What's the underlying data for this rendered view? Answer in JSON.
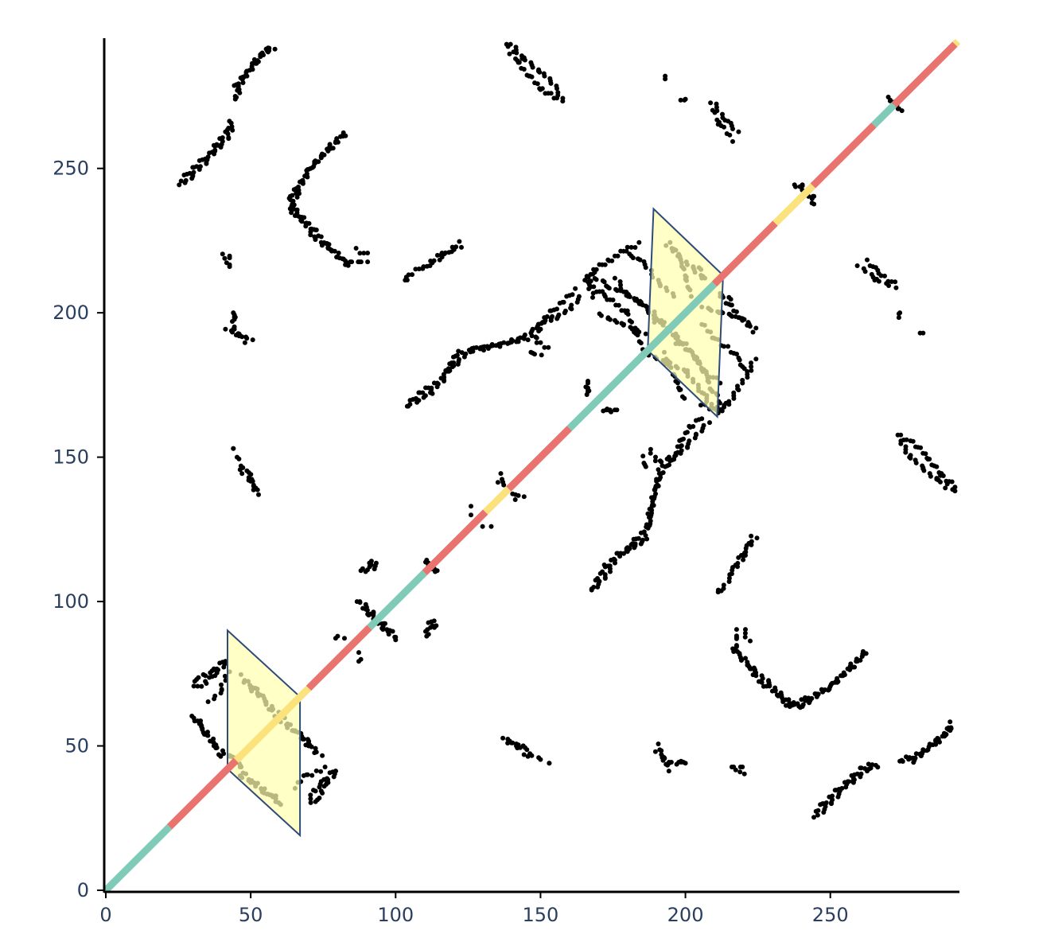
{
  "chart_data": {
    "type": "scatter",
    "title": "",
    "xlabel": "",
    "ylabel": "",
    "xlim": [
      0,
      294
    ],
    "ylim": [
      0,
      294
    ],
    "grid": false,
    "x_ticks": [
      {
        "value": 0,
        "label": "0"
      },
      {
        "value": 50,
        "label": "50"
      },
      {
        "value": 100,
        "label": "100"
      },
      {
        "value": 150,
        "label": "150"
      },
      {
        "value": 200,
        "label": "200"
      },
      {
        "value": 250,
        "label": "250"
      }
    ],
    "y_ticks": [
      {
        "value": 0,
        "label": "0"
      },
      {
        "value": 50,
        "label": "50"
      },
      {
        "value": 100,
        "label": "100"
      },
      {
        "value": 150,
        "label": "150"
      },
      {
        "value": 200,
        "label": "200"
      },
      {
        "value": 250,
        "label": "250"
      }
    ],
    "colors": {
      "points": "#000000",
      "helix": "#e8736f",
      "strand": "#7fcbb8",
      "turn": "#fbe27c",
      "domain_fill": "#ffffb0",
      "domain_stroke": "#2e4a7a",
      "axis": "#000000"
    },
    "diagonal_segments": [
      {
        "start": 0,
        "end": 22,
        "type": "strand"
      },
      {
        "start": 22,
        "end": 45,
        "type": "helix"
      },
      {
        "start": 45,
        "end": 70,
        "type": "turn"
      },
      {
        "start": 70,
        "end": 91,
        "type": "helix"
      },
      {
        "start": 91,
        "end": 110,
        "type": "strand"
      },
      {
        "start": 110,
        "end": 131,
        "type": "helix"
      },
      {
        "start": 131,
        "end": 139,
        "type": "turn"
      },
      {
        "start": 139,
        "end": 160,
        "type": "helix"
      },
      {
        "start": 160,
        "end": 210,
        "type": "strand"
      },
      {
        "start": 210,
        "end": 231,
        "type": "helix"
      },
      {
        "start": 231,
        "end": 244,
        "type": "turn"
      },
      {
        "start": 244,
        "end": 265,
        "type": "helix"
      },
      {
        "start": 265,
        "end": 272,
        "type": "strand"
      },
      {
        "start": 272,
        "end": 293,
        "type": "helix"
      },
      {
        "start": 293,
        "end": 294,
        "type": "turn"
      }
    ],
    "domains": [
      {
        "start": 42,
        "end": 67,
        "apex": [
          42,
          90
        ]
      },
      {
        "start": 187,
        "end": 213,
        "apex": [
          189,
          236
        ]
      }
    ],
    "contact_traces": [
      {
        "pts": [
          [
            26,
            245
          ],
          [
            30,
            248
          ],
          [
            34,
            252
          ],
          [
            38,
            256
          ],
          [
            42,
            260
          ],
          [
            44,
            265
          ]
        ],
        "step": 1.3
      },
      {
        "pts": [
          [
            45,
            275
          ],
          [
            48,
            282
          ],
          [
            52,
            287
          ],
          [
            56,
            291
          ],
          [
            58,
            292
          ]
        ],
        "step": 1.3
      },
      {
        "pts": [
          [
            64,
            234
          ],
          [
            66,
            242
          ],
          [
            70,
            250
          ],
          [
            74,
            254
          ],
          [
            78,
            258
          ],
          [
            82,
            262
          ]
        ],
        "step": 1.3
      },
      {
        "pts": [
          [
            64,
            238
          ],
          [
            68,
            232
          ],
          [
            72,
            226
          ],
          [
            76,
            222
          ],
          [
            80,
            220
          ],
          [
            84,
            218
          ],
          [
            90,
            218
          ]
        ],
        "step": 1.3
      },
      {
        "pts": [
          [
            41,
            217
          ],
          [
            41,
            220
          ]
        ],
        "step": 1.5
      },
      {
        "pts": [
          [
            42,
            195
          ],
          [
            46,
            193
          ],
          [
            50,
            191
          ]
        ],
        "step": 1.2
      },
      {
        "pts": [
          [
            44,
            197
          ],
          [
            44,
            200
          ]
        ],
        "step": 1.5
      },
      {
        "pts": [
          [
            44,
            153
          ]
        ],
        "step": 2
      },
      {
        "pts": [
          [
            46,
            146
          ],
          [
            50,
            142
          ],
          [
            52,
            137
          ]
        ],
        "step": 1.8
      },
      {
        "pts": [
          [
            103,
            212
          ],
          [
            104,
            211
          ]
        ],
        "step": 2
      },
      {
        "pts": [
          [
            110,
            216
          ],
          [
            116,
            220
          ],
          [
            122,
            223
          ]
        ],
        "step": 1.8
      },
      {
        "pts": [
          [
            140,
            293
          ],
          [
            144,
            288
          ],
          [
            150,
            283
          ],
          [
            156,
            277
          ],
          [
            158,
            274
          ]
        ],
        "step": 1.3
      },
      {
        "pts": [
          [
            193,
            282
          ]
        ],
        "step": 2
      },
      {
        "pts": [
          [
            198,
            274
          ],
          [
            200,
            274
          ]
        ],
        "step": 1.5
      },
      {
        "pts": [
          [
            210,
            272
          ],
          [
            214,
            266
          ],
          [
            218,
            262
          ]
        ],
        "step": 1.5
      },
      {
        "pts": [
          [
            260,
            217
          ],
          [
            266,
            212
          ],
          [
            272,
            209
          ]
        ],
        "step": 1.5
      },
      {
        "pts": [
          [
            274,
            200
          ]
        ],
        "step": 2
      },
      {
        "pts": [
          [
            281,
            193
          ]
        ],
        "step": 2
      },
      {
        "pts": [
          [
            104,
            168
          ],
          [
            108,
            170
          ],
          [
            112,
            172
          ],
          [
            116,
            176
          ],
          [
            120,
            182
          ],
          [
            126,
            188
          ],
          [
            134,
            189
          ],
          [
            142,
            190
          ],
          [
            148,
            194
          ],
          [
            154,
            198
          ],
          [
            160,
            202
          ],
          [
            164,
            206
          ]
        ],
        "step": 1.3
      },
      {
        "pts": [
          [
            146,
            186
          ],
          [
            150,
            185
          ]
        ],
        "step": 1.5
      },
      {
        "pts": [
          [
            188,
            186
          ],
          [
            194,
            183
          ],
          [
            200,
            180
          ],
          [
            206,
            172
          ],
          [
            210,
            166
          ],
          [
            214,
            168
          ],
          [
            218,
            174
          ],
          [
            222,
            180
          ],
          [
            224,
            184
          ]
        ],
        "step": 1.3
      },
      {
        "pts": [
          [
            206,
            202
          ],
          [
            212,
            200
          ],
          [
            218,
            198
          ],
          [
            224,
            194
          ]
        ],
        "step": 1.3
      },
      {
        "pts": [
          [
            212,
            206
          ],
          [
            216,
            204
          ]
        ],
        "step": 1.5
      },
      {
        "pts": [
          [
            166,
            176
          ],
          [
            166,
            172
          ]
        ],
        "step": 1.5
      },
      {
        "pts": [
          [
            172,
            166
          ],
          [
            176,
            166
          ]
        ],
        "step": 1.5
      },
      {
        "pts": [
          [
            166,
            212
          ],
          [
            168,
            206
          ]
        ],
        "step": 1.5
      },
      {
        "pts": [
          [
            168,
            104
          ],
          [
            172,
            108
          ],
          [
            176,
            114
          ],
          [
            180,
            118
          ],
          [
            186,
            122
          ],
          [
            188,
            132
          ],
          [
            190,
            140
          ],
          [
            192,
            148
          ],
          [
            196,
            150
          ],
          [
            200,
            154
          ],
          [
            204,
            158
          ],
          [
            208,
            162
          ]
        ],
        "step": 1.3
      },
      {
        "pts": [
          [
            188,
            152
          ],
          [
            190,
            148
          ]
        ],
        "step": 1.5
      },
      {
        "pts": [
          [
            216,
            84
          ],
          [
            220,
            80
          ],
          [
            224,
            76
          ],
          [
            228,
            72
          ],
          [
            234,
            66
          ],
          [
            240,
            64
          ],
          [
            246,
            68
          ],
          [
            252,
            72
          ],
          [
            256,
            76
          ],
          [
            262,
            82
          ]
        ],
        "step": 1.3
      },
      {
        "pts": [
          [
            220,
            90
          ],
          [
            222,
            86
          ]
        ],
        "step": 1.5
      },
      {
        "pts": [
          [
            212,
            104
          ],
          [
            216,
            110
          ],
          [
            220,
            116
          ],
          [
            224,
            122
          ]
        ],
        "step": 1.5
      },
      {
        "pts": [
          [
            246,
            26
          ],
          [
            250,
            30
          ],
          [
            254,
            34
          ],
          [
            258,
            38
          ],
          [
            262,
            42
          ],
          [
            266,
            43
          ]
        ],
        "step": 1.3
      },
      {
        "pts": [
          [
            274,
            44
          ],
          [
            278,
            45
          ],
          [
            282,
            48
          ],
          [
            286,
            52
          ],
          [
            290,
            54
          ],
          [
            292,
            56
          ]
        ],
        "step": 1.3
      },
      {
        "pts": [
          [
            274,
            156
          ],
          [
            278,
            150
          ],
          [
            282,
            146
          ],
          [
            286,
            142
          ],
          [
            290,
            140
          ],
          [
            293,
            139
          ]
        ],
        "step": 1.3
      },
      {
        "pts": [
          [
            138,
            52
          ],
          [
            142,
            50
          ],
          [
            146,
            48
          ],
          [
            150,
            46
          ]
        ],
        "step": 1.5
      },
      {
        "pts": [
          [
            153,
            44
          ]
        ],
        "step": 2
      },
      {
        "pts": [
          [
            190,
            48
          ],
          [
            194,
            44
          ],
          [
            200,
            44
          ]
        ],
        "step": 1.5
      },
      {
        "pts": [
          [
            216,
            42
          ],
          [
            220,
            42
          ]
        ],
        "step": 1.5
      },
      {
        "pts": [
          [
            46,
            40
          ],
          [
            50,
            38
          ],
          [
            54,
            34
          ],
          [
            58,
            32
          ],
          [
            60,
            29
          ]
        ],
        "step": 1.3
      },
      {
        "pts": [
          [
            70,
            30
          ],
          [
            72,
            34
          ],
          [
            76,
            38
          ],
          [
            80,
            42
          ]
        ],
        "step": 1.3
      },
      {
        "pts": [
          [
            66,
            56
          ],
          [
            70,
            52
          ],
          [
            74,
            47
          ]
        ],
        "step": 1.5
      },
      {
        "pts": [
          [
            88,
            100
          ],
          [
            92,
            96
          ],
          [
            96,
            90
          ],
          [
            100,
            86
          ]
        ],
        "step": 1.3
      },
      {
        "pts": [
          [
            88,
            110
          ],
          [
            92,
            112
          ],
          [
            94,
            114
          ]
        ],
        "step": 1.5
      },
      {
        "pts": [
          [
            110,
            90
          ],
          [
            114,
            92
          ]
        ],
        "step": 1.5
      },
      {
        "pts": [
          [
            110,
            114
          ],
          [
            114,
            110
          ]
        ],
        "step": 1.5
      },
      {
        "pts": [
          [
            80,
            88
          ],
          [
            82,
            88
          ]
        ],
        "step": 1.5
      },
      {
        "pts": [
          [
            88,
            80
          ]
        ],
        "step": 2
      },
      {
        "pts": [
          [
            126,
            133
          ]
        ],
        "step": 2
      },
      {
        "pts": [
          [
            130,
            126
          ]
        ],
        "step": 2
      },
      {
        "pts": [
          [
            136,
            142
          ],
          [
            138,
            140
          ]
        ],
        "step": 1.5
      },
      {
        "pts": [
          [
            142,
            136
          ],
          [
            144,
            137
          ]
        ],
        "step": 1.5
      },
      {
        "pts": [
          [
            244,
            238
          ],
          [
            240,
            244
          ],
          [
            238,
            244
          ]
        ],
        "step": 1.8
      },
      {
        "pts": [
          [
            270,
            274
          ],
          [
            274,
            270
          ]
        ],
        "step": 1.8
      },
      {
        "pts": [
          [
            30,
            60
          ],
          [
            34,
            56
          ],
          [
            38,
            50
          ],
          [
            42,
            46
          ],
          [
            46,
            45
          ]
        ],
        "step": 1.4
      },
      {
        "pts": [
          [
            30,
            72
          ],
          [
            34,
            74
          ],
          [
            38,
            76
          ],
          [
            42,
            80
          ]
        ],
        "step": 1.4
      },
      {
        "pts": [
          [
            36,
            66
          ],
          [
            40,
            70
          ],
          [
            42,
            76
          ]
        ],
        "step": 1.5
      },
      {
        "pts": [
          [
            48,
            72
          ],
          [
            52,
            68
          ],
          [
            56,
            64
          ],
          [
            60,
            60
          ],
          [
            64,
            56
          ]
        ],
        "step": 1.4
      },
      {
        "pts": [
          [
            166,
            212
          ],
          [
            172,
            210
          ],
          [
            178,
            208
          ],
          [
            184,
            204
          ],
          [
            188,
            200
          ],
          [
            192,
            196
          ],
          [
            196,
            192
          ],
          [
            200,
            190
          ]
        ],
        "step": 1.3
      },
      {
        "pts": [
          [
            170,
            200
          ],
          [
            174,
            198
          ],
          [
            178,
            196
          ],
          [
            182,
            194
          ],
          [
            186,
            192
          ]
        ],
        "step": 1.4
      },
      {
        "pts": [
          [
            180,
            220
          ],
          [
            184,
            218
          ],
          [
            188,
            214
          ],
          [
            192,
            210
          ],
          [
            196,
            206
          ]
        ],
        "step": 1.4
      },
      {
        "pts": [
          [
            194,
            224
          ],
          [
            198,
            220
          ],
          [
            202,
            216
          ],
          [
            206,
            212
          ]
        ],
        "step": 1.4
      },
      {
        "pts": [
          [
            176,
            212
          ],
          [
            180,
            206
          ],
          [
            186,
            202
          ],
          [
            190,
            196
          ]
        ],
        "step": 1.5
      }
    ]
  }
}
